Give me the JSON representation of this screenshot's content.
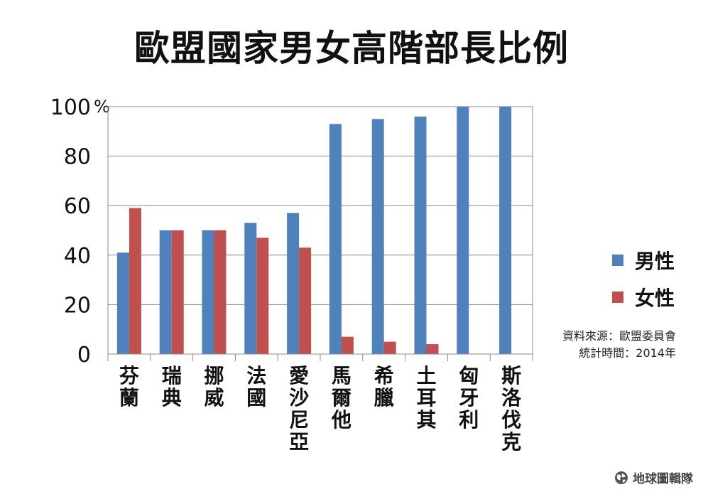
{
  "chart_data": {
    "type": "bar",
    "title": "歐盟國家男女高階部長比例",
    "y_unit": "%",
    "ylim": [
      0,
      100
    ],
    "yticks": [
      "0",
      "20",
      "40",
      "60",
      "80",
      "100"
    ],
    "grid": true,
    "legend_position": "right",
    "categories": [
      "芬蘭",
      "瑞典",
      "挪威",
      "法國",
      "愛沙尼亞",
      "馬爾他",
      "希臘",
      "土耳其",
      "匈牙利",
      "斯洛伐克"
    ],
    "series": [
      {
        "name": "男性",
        "color": "#4f81bd",
        "values": [
          41,
          50,
          50,
          53,
          57,
          93,
          95,
          96,
          100,
          100
        ]
      },
      {
        "name": "女性",
        "color": "#c0504d",
        "values": [
          59,
          50,
          50,
          47,
          43,
          7,
          5,
          4,
          0,
          0
        ]
      }
    ]
  },
  "source_lines": [
    "資料來源：歐盟委員會",
    "統計時間：2014年"
  ],
  "watermark": {
    "icon": "globe-icon",
    "text": "地球圖輯隊"
  }
}
